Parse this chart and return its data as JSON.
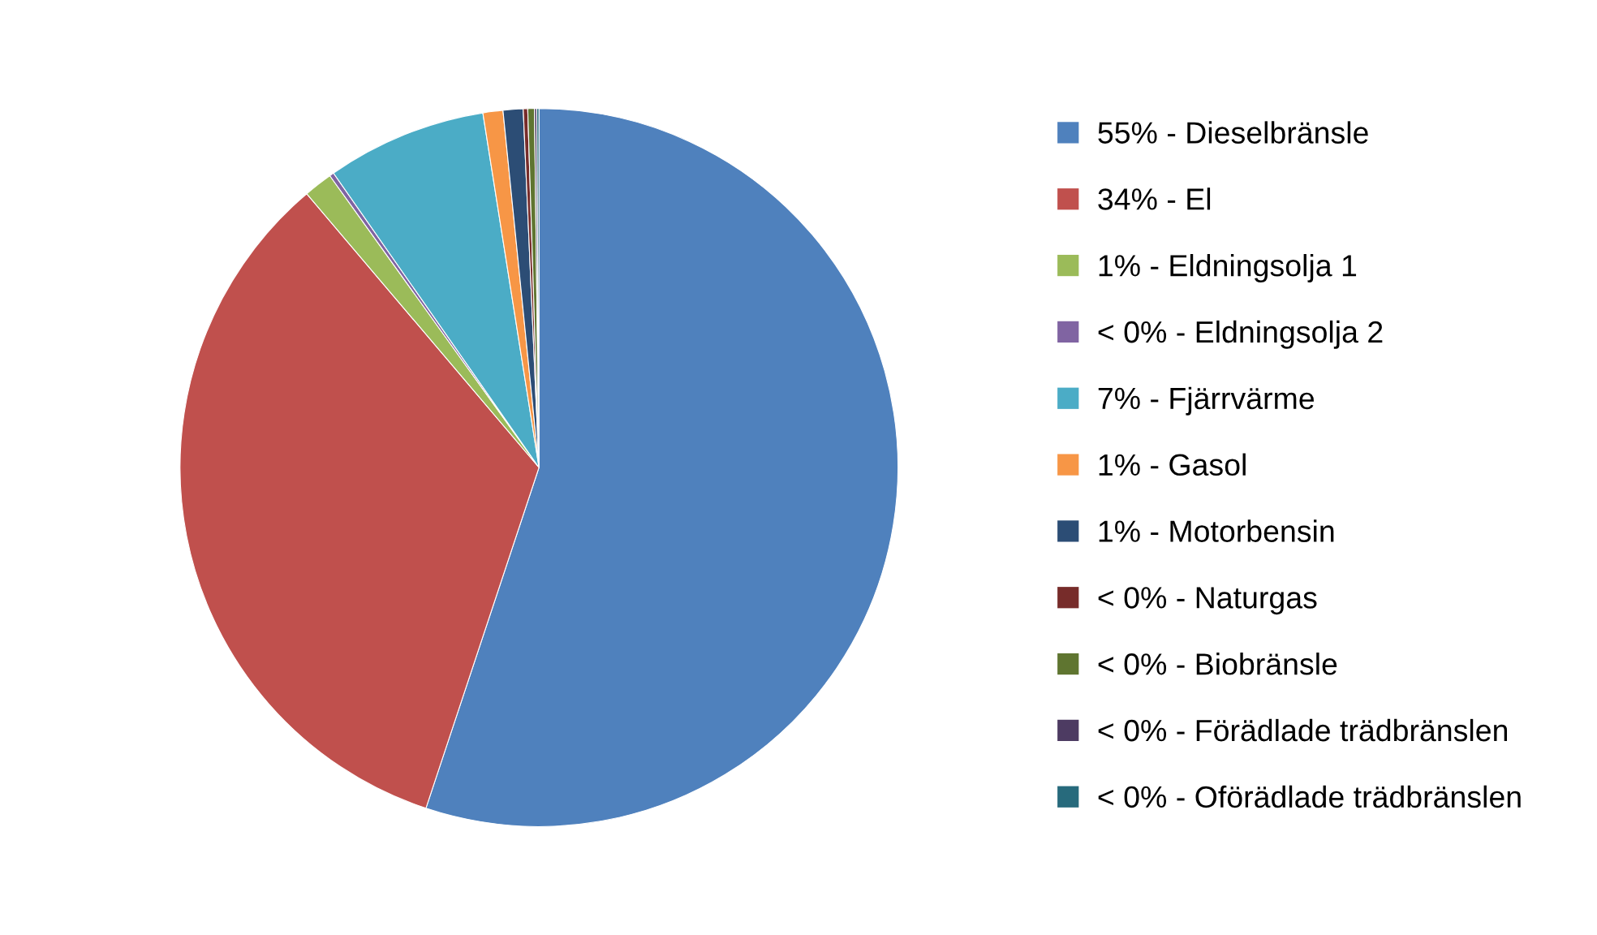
{
  "chart_data": {
    "type": "pie",
    "categories": [
      "55% - Dieselbränsle",
      "34% - El",
      "1% - Eldningsolja 1",
      "< 0% - Eldningsolja 2",
      "7% - Fjärrvärme",
      "1% - Gasol",
      "1% - Motorbensin",
      "< 0% - Naturgas",
      "< 0% - Biobränsle",
      "< 0% - Förädlade trädbränslen",
      "< 0% - Oförädlade trädbränslen"
    ],
    "values": [
      55.1,
      33.7,
      1.3,
      0.2,
      7.2,
      0.9,
      0.9,
      0.2,
      0.3,
      0.1,
      0.1
    ],
    "colors": [
      "#4f81bd",
      "#c0504d",
      "#9bbb59",
      "#8064a2",
      "#4bacc6",
      "#f79646",
      "#2c4d75",
      "#772c2a",
      "#5f7530",
      "#4d3b62",
      "#276a7c"
    ],
    "legend": "right"
  }
}
